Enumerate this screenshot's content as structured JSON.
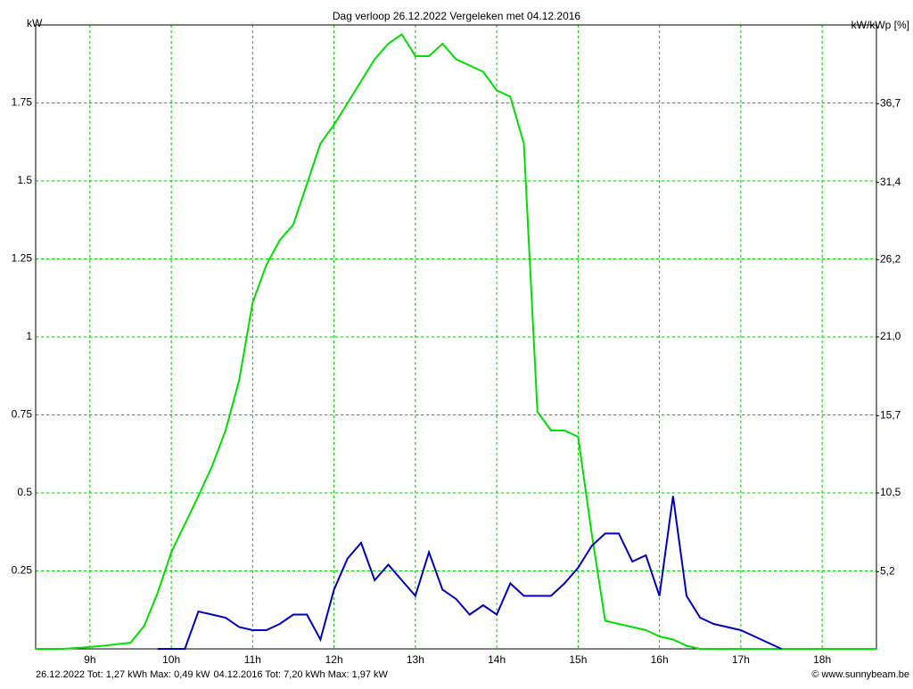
{
  "chart_data": {
    "type": "line",
    "title": "Dag  verloop 26.12.2022   Vergeleken met 04.12.2016",
    "y_label": "kW",
    "y2_label": "kW/kWp [%]",
    "x": [
      8.333,
      8.5,
      8.667,
      8.833,
      9,
      9.167,
      9.333,
      9.5,
      9.667,
      9.833,
      10,
      10.167,
      10.333,
      10.5,
      10.667,
      10.833,
      11,
      11.167,
      11.333,
      11.5,
      11.667,
      11.833,
      12,
      12.167,
      12.333,
      12.5,
      12.667,
      12.833,
      13,
      13.167,
      13.333,
      13.5,
      13.667,
      13.833,
      14,
      14.167,
      14.333,
      14.5,
      14.667,
      14.833,
      15,
      15.167,
      15.333,
      15.5,
      15.667,
      15.833,
      16,
      16.167,
      16.333,
      16.5,
      16.667,
      16.833,
      17,
      17.167,
      17.333,
      17.5,
      17.667,
      17.833,
      18,
      18.167,
      18.333,
      18.5,
      18.667
    ],
    "series": [
      {
        "name": "26.12.2022 Tot: 1,27 kWh Max: 0,49 kW",
        "color": "#0000c0",
        "values": [
          null,
          null,
          null,
          null,
          null,
          null,
          null,
          null,
          null,
          0,
          0,
          0,
          0.12,
          0.11,
          0.1,
          0.07,
          0.06,
          0.06,
          0.08,
          0.11,
          0.11,
          0.03,
          0.19,
          0.29,
          0.34,
          0.22,
          0.27,
          0.22,
          0.17,
          0.31,
          0.19,
          0.16,
          0.11,
          0.14,
          0.11,
          0.21,
          0.17,
          0.17,
          0.17,
          0.21,
          0.26,
          0.33,
          0.37,
          0.37,
          0.28,
          0.3,
          0.17,
          0.49,
          0.17,
          0.1,
          0.08,
          0.07,
          0.06,
          0.04,
          0.02,
          0,
          null,
          null,
          null,
          null,
          null,
          null,
          null
        ]
      },
      {
        "name": "04.12.2016 Tot: 7,20 kWh Max: 1,97 kW",
        "color": "#00e000",
        "values": [
          0,
          0,
          0,
          0.003,
          0.006,
          0.01,
          0.015,
          0.02,
          0.074,
          0.18,
          0.31,
          0.4,
          0.49,
          0.585,
          0.7,
          0.86,
          1.11,
          1.23,
          1.31,
          1.36,
          1.49,
          1.62,
          1.68,
          1.75,
          1.82,
          1.89,
          1.94,
          1.97,
          1.9,
          1.9,
          1.94,
          1.89,
          1.87,
          1.85,
          1.79,
          1.77,
          1.62,
          0.76,
          0.7,
          0.7,
          0.68,
          0.37,
          0.09,
          0.08,
          0.07,
          0.06,
          0.04,
          0.03,
          0.01,
          0,
          0,
          0,
          0,
          0,
          0,
          0,
          0,
          0,
          0,
          0,
          0,
          0,
          0
        ]
      }
    ],
    "xlim": [
      8.333,
      18.667
    ],
    "xticks": [
      {
        "value": 9,
        "label": "9h"
      },
      {
        "value": 10,
        "label": "10h"
      },
      {
        "value": 11,
        "label": "11h"
      },
      {
        "value": 12,
        "label": "12h"
      },
      {
        "value": 13,
        "label": "13h"
      },
      {
        "value": 14,
        "label": "14h"
      },
      {
        "value": 15,
        "label": "15h"
      },
      {
        "value": 16,
        "label": "16h"
      },
      {
        "value": 17,
        "label": "17h"
      },
      {
        "value": 18,
        "label": "18h"
      }
    ],
    "ylim": [
      0,
      2
    ],
    "yticks": [
      0.25,
      0.5,
      0.75,
      1,
      1.25,
      1.5,
      1.75
    ],
    "y2lim": [
      0,
      42
    ],
    "y2ticks": [
      {
        "value": 5.2,
        "label": "5,2"
      },
      {
        "value": 10.5,
        "label": "10,5"
      },
      {
        "value": 15.7,
        "label": "15,7"
      },
      {
        "value": 21,
        "label": "21,0"
      },
      {
        "value": 26.2,
        "label": "26,2"
      },
      {
        "value": 31.4,
        "label": "31,4"
      },
      {
        "value": 36.7,
        "label": "36,7"
      }
    ],
    "grid": true,
    "grid_color": "#00c800",
    "credit": "© www.sunnybeam.be"
  }
}
